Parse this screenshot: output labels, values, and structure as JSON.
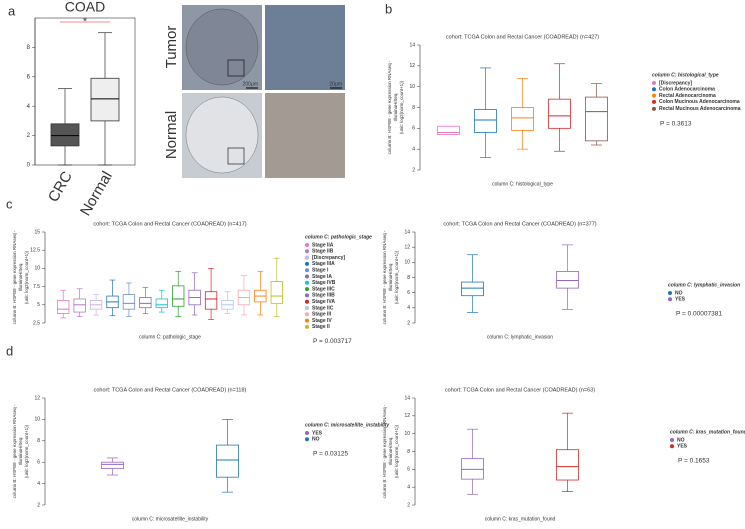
{
  "panel_labels": [
    "a",
    "b",
    "c",
    "d"
  ],
  "images": {
    "row_labels": [
      "Tumor",
      "Normal"
    ],
    "scale_bars": [
      "200μm",
      "20μm"
    ]
  },
  "chart_data": [
    {
      "type": "box",
      "title": "COAD",
      "annotation": "*",
      "categories": [
        "CRC",
        "Normal"
      ],
      "series": [
        {
          "color": "#555555",
          "stats": [
            0.0,
            1.3,
            2.0,
            2.8,
            5.2
          ]
        },
        {
          "color": "#eeeeee",
          "stats": [
            0.0,
            3.0,
            4.5,
            5.9,
            9.0
          ]
        }
      ],
      "ylim": [
        0,
        10
      ],
      "yticks": [
        0,
        2,
        4,
        6,
        8
      ]
    },
    {
      "type": "box",
      "title": "cohort: TCGA Colon and Rectal Cancer (COADREAD) (n=427)",
      "y_label": [
        "column B: HSPB8 - gene expression RNAseq -",
        "IlluminaHiSeq",
        "(unit: log2(norm_count+1))"
      ],
      "x_label": "column C: histological_type",
      "legend_title": "column C: histological_type",
      "p_value": "P = 0.3613",
      "series": [
        {
          "name": "[Discrepancy]",
          "color": "#e377c2",
          "stats": [
            5.4,
            5.4,
            5.6,
            6.2,
            6.2
          ]
        },
        {
          "name": "Colon Adenocarcinoma",
          "color": "#1f77b4",
          "stats": [
            3.2,
            5.6,
            6.8,
            7.8,
            11.8
          ]
        },
        {
          "name": "Rectal Adenocarcinoma",
          "color": "#ff7f0e",
          "stats": [
            4.0,
            5.8,
            7.0,
            8.0,
            10.8
          ]
        },
        {
          "name": "Colon Mucinous Adenocarcinoma",
          "color": "#d62728",
          "stats": [
            3.8,
            6.0,
            7.2,
            8.8,
            12.2
          ]
        },
        {
          "name": "Rectal Mucinous Adenocarcinoma",
          "color": "#8c564b",
          "stats": [
            4.4,
            4.8,
            7.6,
            9.0,
            10.3
          ]
        }
      ],
      "ylim": [
        2,
        14
      ],
      "yticks": [
        2,
        4,
        6,
        8,
        10,
        12,
        14
      ]
    },
    {
      "type": "box",
      "title": "cohort: TCGA Colon and Rectal Cancer (COADREAD) (n=417)",
      "y_label": [
        "column B: HSPB8 - gene expression RNAseq -",
        "IlluminaHiSeq",
        "(unit: log2(norm_count+1))"
      ],
      "x_label": "column C: pathologic_stage",
      "legend_title": "column C: pathologic_stage",
      "p_value": "P = 0.003717",
      "series": [
        {
          "name": "Stage IIA",
          "color": "#e377c2",
          "stats": [
            3.2,
            3.8,
            4.4,
            5.6,
            7.0
          ]
        },
        {
          "name": "Stage IIB",
          "color": "#b07cc6",
          "stats": [
            3.4,
            4.0,
            5.0,
            5.8,
            7.2
          ]
        },
        {
          "name": "[Discrepancy]",
          "color": "#c9b3d9",
          "stats": [
            3.6,
            4.4,
            5.0,
            5.6,
            6.4
          ]
        },
        {
          "name": "Stage IIIA",
          "color": "#1f77b4",
          "stats": [
            3.5,
            4.6,
            5.4,
            6.2,
            8.4
          ]
        },
        {
          "name": "Stage I",
          "color": "#6b8fd1",
          "stats": [
            3.4,
            4.4,
            5.2,
            6.4,
            8.0
          ]
        },
        {
          "name": "Stage IA",
          "color": "#7f6fb0",
          "stats": [
            3.8,
            4.6,
            5.2,
            6.0,
            7.4
          ]
        },
        {
          "name": "Stage IVB",
          "color": "#17becf",
          "stats": [
            4.0,
            4.6,
            5.0,
            5.8,
            7.0
          ]
        },
        {
          "name": "Stage IIIC",
          "color": "#2ca02c",
          "stats": [
            3.4,
            4.8,
            5.8,
            7.6,
            9.6
          ]
        },
        {
          "name": "Stage IIIB",
          "color": "#9467bd",
          "stats": [
            3.6,
            5.0,
            6.0,
            7.0,
            9.4
          ]
        },
        {
          "name": "Stage IVA",
          "color": "#d62728",
          "stats": [
            3.0,
            4.4,
            5.8,
            6.8,
            10.0
          ]
        },
        {
          "name": "Stage IIC",
          "color": "#aec7e8",
          "stats": [
            3.8,
            4.4,
            5.0,
            5.6,
            6.8
          ]
        },
        {
          "name": "Stage III",
          "color": "#f7a6b0",
          "stats": [
            3.6,
            5.0,
            6.0,
            7.0,
            9.0
          ]
        },
        {
          "name": "Stage IV",
          "color": "#ff7f0e",
          "stats": [
            3.6,
            5.4,
            6.2,
            7.0,
            9.6
          ]
        },
        {
          "name": "Stage II",
          "color": "#bcbd22",
          "stats": [
            3.4,
            5.2,
            6.2,
            8.2,
            11.4
          ]
        }
      ],
      "ylim": [
        2.5,
        15
      ],
      "yticks": [
        2.5,
        5,
        7.5,
        10,
        12.5,
        15
      ]
    },
    {
      "type": "box",
      "title": "cohort: TCGA Colon and Rectal Cancer (COADREAD) (n=377)",
      "y_label": [
        "column B: HSPB8 - gene expression RNAseq -",
        "IlluminaHiSeq",
        "(unit: log2(norm_count+1))"
      ],
      "x_label": "column C: lymphatic_invasion",
      "legend_title": "column C: lymphatic_invasion",
      "p_value": "P = 0.00007381",
      "series": [
        {
          "name": "NO",
          "color": "#1f77b4",
          "stats": [
            3.4,
            5.6,
            6.6,
            7.4,
            11.0
          ]
        },
        {
          "name": "YES",
          "color": "#9467bd",
          "stats": [
            3.8,
            6.6,
            7.6,
            8.8,
            12.3
          ]
        }
      ],
      "ylim": [
        2,
        14
      ],
      "yticks": [
        2,
        4,
        6,
        8,
        10,
        12,
        14
      ]
    },
    {
      "type": "box",
      "title": "cohort: TCGA Colon and Rectal Cancer (COADREAD) (n=118)",
      "y_label": [
        "column B: HSPB8 - gene expression RNAseq -",
        "IlluminaHiSeq",
        "(unit: log2(norm_count+1))"
      ],
      "x_label": "column C: microsatellite_instability",
      "legend_title": "column C: microsatellite_instability",
      "p_value": "P = 0.03125",
      "series": [
        {
          "name": "YES",
          "color": "#9467bd",
          "stats": [
            4.8,
            5.4,
            5.8,
            6.0,
            6.4
          ]
        },
        {
          "name": "NO",
          "color": "#1f77b4",
          "stats": [
            3.2,
            4.6,
            6.2,
            7.6,
            10.0
          ]
        }
      ],
      "ylim": [
        2,
        12
      ],
      "yticks": [
        2,
        4,
        6,
        8,
        10,
        12
      ]
    },
    {
      "type": "box",
      "title": "cohort: TCGA Colon and Rectal Cancer (COADREAD) (n=63)",
      "y_label": [
        "column B: HSPB8 - gene expression RNAseq -",
        "IlluminaHiSeq",
        "(unit: log2(norm_count+1))"
      ],
      "x_label": "column C: kras_mutation_found",
      "legend_title": "column C: kras_mutation_found",
      "p_value": "P = 0.1653",
      "series": [
        {
          "name": "NO",
          "color": "#9467bd",
          "stats": [
            3.2,
            4.9,
            6.0,
            7.2,
            10.5
          ]
        },
        {
          "name": "YES",
          "color": "#d62728",
          "stats": [
            3.5,
            4.8,
            6.3,
            8.2,
            12.3
          ]
        }
      ],
      "ylim": [
        2,
        14
      ],
      "yticks": [
        2,
        4,
        6,
        8,
        10,
        12,
        14
      ]
    }
  ]
}
